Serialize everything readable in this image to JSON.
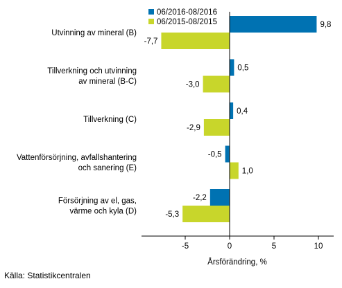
{
  "chart_data": {
    "type": "bar",
    "orientation": "horizontal",
    "categories": [
      [
        "Utvinning av mineral (B)"
      ],
      [
        "Tillverkning och utvinning",
        "av mineral (B-C)"
      ],
      [
        "Tillverkning (C)"
      ],
      [
        "Vattenförsörjning, avfallshantering",
        "och sanering (E)"
      ],
      [
        "Försörjning av el, gas,",
        "värme och kyla (D)"
      ]
    ],
    "series": [
      {
        "name": "06/2016-08/2016",
        "color": "#0072b2",
        "values": [
          9.8,
          0.5,
          0.4,
          -0.5,
          -2.2
        ],
        "labels": [
          "9,8",
          "0,5",
          "0,4",
          "-0,5",
          "-2,2"
        ]
      },
      {
        "name": "06/2015-08/2015",
        "color": "#c8d62b",
        "values": [
          -7.7,
          -3.0,
          -2.9,
          1.0,
          -5.3
        ],
        "labels": [
          "-7,7",
          "-3,0",
          "-2,9",
          "1,0",
          "-5,3"
        ]
      }
    ],
    "xlabel": "Årsförändring, %",
    "xlim": [
      -10,
      12
    ],
    "xticks": [
      -5,
      0,
      5,
      10
    ],
    "xtick_labels": [
      "-5",
      "0",
      "5",
      "10"
    ],
    "grid": false,
    "legend_position": "top"
  },
  "source": "Källa: Statistikcentralen"
}
